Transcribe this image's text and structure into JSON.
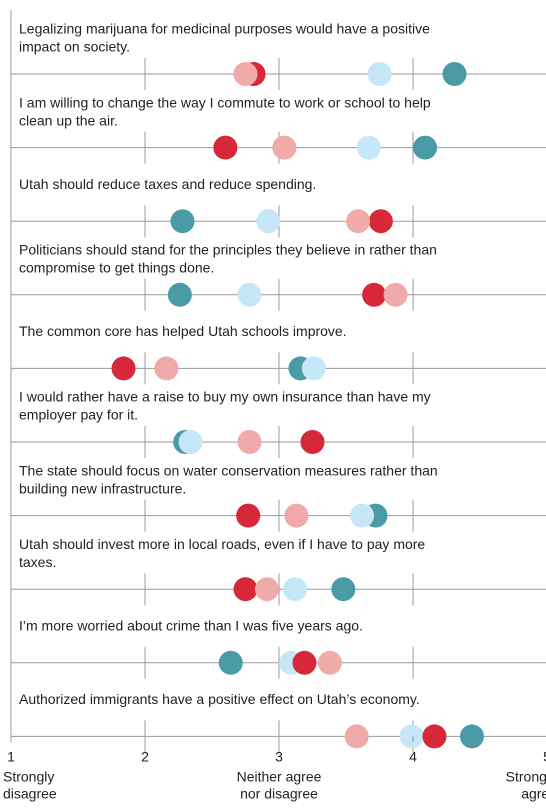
{
  "chart_data": {
    "type": "dot",
    "categories": [
      [
        "Legalizing marijuana for medicinal purposes would have a positive",
        "impact on society."
      ],
      [
        "I am willing to change the way I commute to work or school to help",
        "clean up the air."
      ],
      [
        "Utah should reduce taxes and reduce spending."
      ],
      [
        "Politicians should stand for the principles they believe in rather than",
        "compromise to get things done."
      ],
      [
        "The common core has helped Utah schools improve."
      ],
      [
        "I would rather have a raise to buy my own insurance than have my",
        "employer pay for it."
      ],
      [
        "The state should focus on water conservation measures rather than",
        "building new infrastructure."
      ],
      [
        "Utah should invest more in local roads, even if I have to pay more",
        "taxes."
      ],
      [
        "I’m more worried about crime than I was five years ago."
      ],
      [
        "Authorized immigrants have a positive effect on Utah’s economy."
      ]
    ],
    "series": [
      {
        "color": "#4a9ba5",
        "values": [
          4.31,
          4.09,
          2.28,
          2.26,
          3.16,
          2.3,
          3.72,
          3.48,
          2.64,
          4.44
        ]
      },
      {
        "color": "#c5e7f8",
        "values": [
          3.75,
          3.67,
          2.92,
          2.78,
          3.26,
          2.34,
          3.62,
          3.12,
          3.09,
          3.99
        ]
      },
      {
        "color": "#d62839",
        "values": [
          2.81,
          2.6,
          3.76,
          3.71,
          1.84,
          3.25,
          2.77,
          2.75,
          3.19,
          4.16
        ]
      },
      {
        "color": "#f0aaaa",
        "values": [
          2.75,
          3.04,
          3.59,
          3.87,
          2.16,
          2.78,
          3.13,
          2.91,
          3.38,
          3.58
        ]
      }
    ],
    "xlim": [
      1,
      5
    ],
    "xticks": [
      1,
      2,
      3,
      4,
      5
    ],
    "xtick_notes": [
      {
        "value": 1,
        "label": [
          "Strongly",
          "disagree"
        ]
      },
      {
        "value": 3,
        "label": [
          "Neither agree",
          "nor disagree"
        ]
      },
      {
        "value": 5,
        "label": [
          "Strongly",
          "agree"
        ]
      }
    ]
  }
}
